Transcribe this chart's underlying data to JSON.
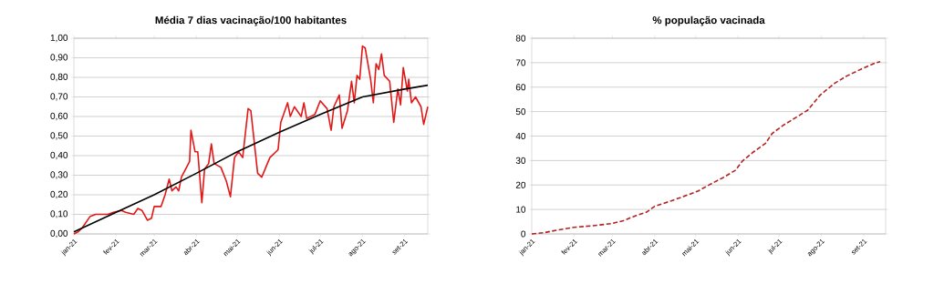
{
  "chart_data": [
    {
      "type": "line",
      "title": "Média 7 dias vacinação/100 habitantes",
      "xlim": [
        "2021-01-01",
        "2021-09-18"
      ],
      "ylim": [
        0,
        1
      ],
      "xticks": [
        {
          "value": "2021-01-01",
          "label": "jan-21"
        },
        {
          "value": "2021-02-01",
          "label": "fev-21"
        },
        {
          "value": "2021-03-01",
          "label": "mar-21"
        },
        {
          "value": "2021-04-01",
          "label": "abr-21"
        },
        {
          "value": "2021-05-01",
          "label": "mai-21"
        },
        {
          "value": "2021-06-01",
          "label": "jun-21"
        },
        {
          "value": "2021-07-01",
          "label": "jul-21"
        },
        {
          "value": "2021-08-01",
          "label": "ago-21"
        },
        {
          "value": "2021-09-01",
          "label": "set-21"
        }
      ],
      "yticks": [
        {
          "value": 0,
          "label": "0,00"
        },
        {
          "value": 0.1,
          "label": "0,10"
        },
        {
          "value": 0.2,
          "label": "0,20"
        },
        {
          "value": 0.3,
          "label": "0,30"
        },
        {
          "value": 0.4,
          "label": "0,40"
        },
        {
          "value": 0.5,
          "label": "0,50"
        },
        {
          "value": 0.6,
          "label": "0,60"
        },
        {
          "value": 0.7,
          "label": "0,70"
        },
        {
          "value": 0.8,
          "label": "0,80"
        },
        {
          "value": 0.9,
          "label": "0,90"
        },
        {
          "value": 1,
          "label": "1,00"
        }
      ],
      "grid": "y",
      "series": [
        {
          "color": "#e01818",
          "x": [
            "2021-01-01",
            "2021-01-04",
            "2021-01-07",
            "2021-01-13",
            "2021-01-17",
            "2021-01-22",
            "2021-01-26",
            "2021-01-30",
            "2021-02-05",
            "2021-02-08",
            "2021-02-14",
            "2021-02-17",
            "2021-02-20",
            "2021-02-24",
            "2021-02-27",
            "2021-03-01",
            "2021-03-06",
            "2021-03-09",
            "2021-03-12",
            "2021-03-14",
            "2021-03-17",
            "2021-03-19",
            "2021-03-21",
            "2021-03-24",
            "2021-03-27",
            "2021-03-28",
            "2021-03-31",
            "2021-04-02",
            "2021-04-05",
            "2021-04-07",
            "2021-04-10",
            "2021-04-12",
            "2021-04-14",
            "2021-04-19",
            "2021-04-23",
            "2021-04-26",
            "2021-04-29",
            "2021-05-02",
            "2021-05-05",
            "2021-05-09",
            "2021-05-11",
            "2021-05-16",
            "2021-05-19",
            "2021-05-25",
            "2021-05-31",
            "2021-06-02",
            "2021-06-07",
            "2021-06-09",
            "2021-06-12",
            "2021-06-17",
            "2021-06-19",
            "2021-06-21",
            "2021-06-27",
            "2021-07-01",
            "2021-07-06",
            "2021-07-09",
            "2021-07-11",
            "2021-07-15",
            "2021-07-17",
            "2021-07-21",
            "2021-07-24",
            "2021-07-26",
            "2021-07-28",
            "2021-07-30",
            "2021-08-01",
            "2021-08-03",
            "2021-08-07",
            "2021-08-09",
            "2021-08-11",
            "2021-08-13",
            "2021-08-15",
            "2021-08-17",
            "2021-08-21",
            "2021-08-24",
            "2021-08-27",
            "2021-08-29",
            "2021-08-31",
            "2021-09-03",
            "2021-09-04",
            "2021-09-06",
            "2021-09-09",
            "2021-09-13",
            "2021-09-15",
            "2021-09-18"
          ],
          "values": [
            0.0,
            0.01,
            0.03,
            0.09,
            0.1,
            0.1,
            0.1,
            0.11,
            0.12,
            0.11,
            0.1,
            0.13,
            0.12,
            0.07,
            0.08,
            0.14,
            0.14,
            0.2,
            0.28,
            0.22,
            0.24,
            0.22,
            0.29,
            0.33,
            0.37,
            0.53,
            0.42,
            0.42,
            0.16,
            0.33,
            0.36,
            0.46,
            0.36,
            0.34,
            0.27,
            0.19,
            0.39,
            0.42,
            0.39,
            0.64,
            0.63,
            0.31,
            0.29,
            0.39,
            0.43,
            0.57,
            0.67,
            0.6,
            0.65,
            0.6,
            0.67,
            0.59,
            0.61,
            0.68,
            0.64,
            0.53,
            0.65,
            0.71,
            0.54,
            0.63,
            0.78,
            0.67,
            0.81,
            0.79,
            0.96,
            0.95,
            0.79,
            0.67,
            0.87,
            0.84,
            0.92,
            0.81,
            0.78,
            0.57,
            0.74,
            0.66,
            0.85,
            0.73,
            0.79,
            0.67,
            0.7,
            0.65,
            0.56,
            0.65
          ]
        },
        {
          "color": "#000000",
          "x": [
            "2021-01-01",
            "2021-02-01",
            "2021-03-01",
            "2021-04-01",
            "2021-05-01",
            "2021-06-01",
            "2021-07-01",
            "2021-08-01",
            "2021-09-01",
            "2021-09-18"
          ],
          "values": [
            0.01,
            0.11,
            0.2,
            0.31,
            0.42,
            0.52,
            0.61,
            0.7,
            0.74,
            0.76
          ]
        }
      ]
    },
    {
      "type": "line",
      "title": "% população vacinada",
      "xlim": [
        "2021-01-01",
        "2021-09-17"
      ],
      "ylim": [
        0,
        80
      ],
      "xticks": [
        {
          "value": "2021-01-01",
          "label": "jan-21"
        },
        {
          "value": "2021-02-01",
          "label": "fev-21"
        },
        {
          "value": "2021-03-01",
          "label": "mar-21"
        },
        {
          "value": "2021-04-01",
          "label": "abr-21"
        },
        {
          "value": "2021-05-01",
          "label": "mai-21"
        },
        {
          "value": "2021-06-01",
          "label": "jun-21"
        },
        {
          "value": "2021-07-01",
          "label": "jul-21"
        },
        {
          "value": "2021-08-01",
          "label": "ago-21"
        },
        {
          "value": "2021-09-01",
          "label": "set-21"
        }
      ],
      "yticks": [
        0,
        10,
        20,
        30,
        40,
        50,
        60,
        70,
        80
      ],
      "grid": "y",
      "line_style": "dashed",
      "series": [
        {
          "color": "#b22222",
          "x": [
            "2021-01-01",
            "2021-01-10",
            "2021-01-19",
            "2021-02-01",
            "2021-02-14",
            "2021-02-28",
            "2021-03-09",
            "2021-03-18",
            "2021-03-26",
            "2021-04-01",
            "2021-04-13",
            "2021-04-22",
            "2021-05-03",
            "2021-05-12",
            "2021-05-21",
            "2021-05-30",
            "2021-06-04",
            "2021-06-12",
            "2021-06-21",
            "2021-06-26",
            "2021-07-04",
            "2021-07-13",
            "2021-07-22",
            "2021-07-31",
            "2021-08-04",
            "2021-08-11",
            "2021-08-20",
            "2021-08-31",
            "2021-09-09",
            "2021-09-13"
          ],
          "values": [
            0,
            0.5,
            1.5,
            2.7,
            3.3,
            4.2,
            5.4,
            7.4,
            8.9,
            11.3,
            13.5,
            15.3,
            17.6,
            20.4,
            23,
            26,
            29.7,
            33.4,
            37,
            41.1,
            44.4,
            47.5,
            50.6,
            56.7,
            58.6,
            61.7,
            64.7,
            67.6,
            69.8,
            70.4
          ]
        }
      ]
    }
  ]
}
